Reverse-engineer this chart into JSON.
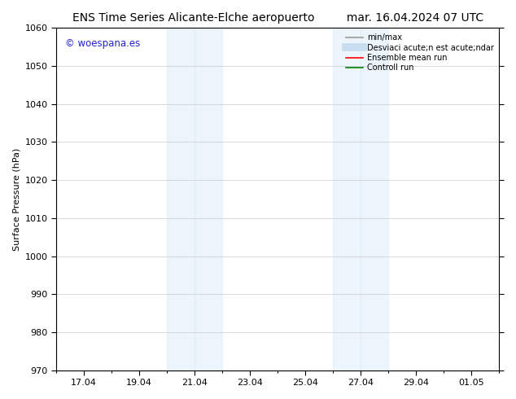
{
  "title_left": "ENS Time Series Alicante-Elche aeropuerto",
  "title_right": "mar. 16.04.2024 07 UTC",
  "ylabel": "Surface Pressure (hPa)",
  "ylim": [
    970,
    1060
  ],
  "yticks": [
    970,
    980,
    990,
    1000,
    1010,
    1020,
    1030,
    1040,
    1050,
    1060
  ],
  "xtick_labels": [
    "17.04",
    "19.04",
    "21.04",
    "23.04",
    "25.04",
    "27.04",
    "29.04",
    "01.05"
  ],
  "xtick_positions": [
    1,
    3,
    5,
    7,
    9,
    11,
    13,
    15
  ],
  "xlim": [
    0,
    16
  ],
  "shade_regions": [
    {
      "x_start": 4.0,
      "x_end": 5.0
    },
    {
      "x_start": 5.0,
      "x_end": 6.0
    },
    {
      "x_start": 10.0,
      "x_end": 11.0
    },
    {
      "x_start": 11.0,
      "x_end": 12.0
    }
  ],
  "shade_color": "#ddeef8",
  "shade_alpha": 0.55,
  "watermark_text": "© woespana.es",
  "watermark_color": "#2222cc",
  "legend_labels": [
    "min/max",
    "Desviaci acute;n est acute;ndar",
    "Ensemble mean run",
    "Controll run"
  ],
  "legend_colors": [
    "#aaaaaa",
    "#c8ddef",
    "red",
    "green"
  ],
  "legend_lws": [
    1.5,
    7,
    1.2,
    1.2
  ],
  "bg_color": "#ffffff",
  "font_size": 8,
  "title_font_size": 10,
  "grid_color": "#cccccc",
  "spine_color": "#000000"
}
